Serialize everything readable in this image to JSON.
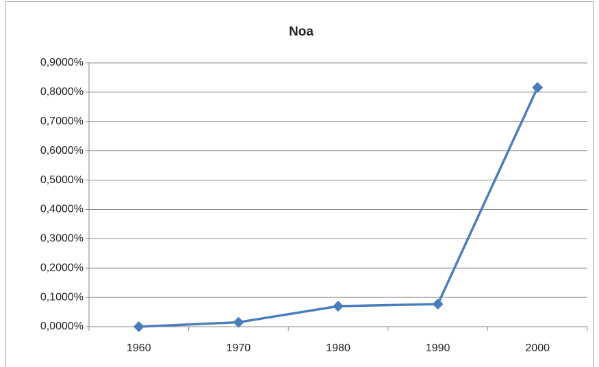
{
  "chart_data": {
    "type": "line",
    "title": "Noa",
    "categories": [
      "1960",
      "1970",
      "1980",
      "1990",
      "2000"
    ],
    "series": [
      {
        "name": "Noa",
        "color": "#4a7ebb",
        "values": [
          0,
          0.015,
          0.07,
          0.077,
          0.816
        ]
      }
    ],
    "ylim": [
      0,
      0.9
    ],
    "yticks": [
      {
        "value": 0,
        "label": "0,0000%"
      },
      {
        "value": 0.1,
        "label": "0,1000%"
      },
      {
        "value": 0.2,
        "label": "0,2000%"
      },
      {
        "value": 0.3,
        "label": "0,3000%"
      },
      {
        "value": 0.4,
        "label": "0,4000%"
      },
      {
        "value": 0.5,
        "label": "0,5000%"
      },
      {
        "value": 0.6,
        "label": "0,6000%"
      },
      {
        "value": 0.7,
        "label": "0,7000%"
      },
      {
        "value": 0.8,
        "label": "0,8000%"
      },
      {
        "value": 0.9,
        "label": "0,9000%"
      }
    ],
    "grid": true
  }
}
